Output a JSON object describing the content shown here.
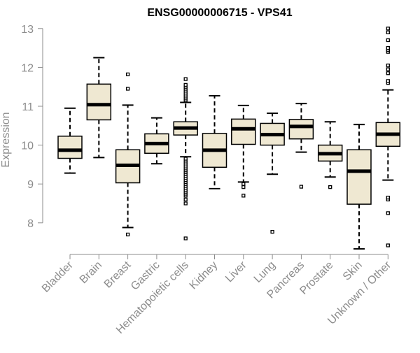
{
  "chart_data": {
    "type": "boxplot",
    "title": "ENSG00000006715 - VPS41",
    "ylabel": "Expression",
    "xlabel": "",
    "ylim": [
      7.3,
      13.0
    ],
    "yticks": [
      8,
      9,
      10,
      11,
      12,
      13
    ],
    "grid": false,
    "legend": "none",
    "colors": {
      "box_fill": "#efe8d2",
      "stroke": "#000000",
      "axis": "#8c8c8c"
    },
    "categories": [
      "Bladder",
      "Brain",
      "Breast",
      "Gastric",
      "Hematopoietic cells",
      "Kidney",
      "Liver",
      "Lung",
      "Pancreas",
      "Prostate",
      "Skin",
      "Unknown / Other"
    ],
    "boxes": [
      {
        "category": "Bladder",
        "whisker_low": 9.28,
        "q1": 9.66,
        "median": 9.87,
        "q3": 10.23,
        "whisker_high": 10.95,
        "outliers": []
      },
      {
        "category": "Brain",
        "whisker_low": 9.68,
        "q1": 10.65,
        "median": 11.04,
        "q3": 11.57,
        "whisker_high": 12.25,
        "outliers": []
      },
      {
        "category": "Breast",
        "whisker_low": 7.88,
        "q1": 9.03,
        "median": 9.48,
        "q3": 9.88,
        "whisker_high": 11.03,
        "outliers": [
          7.7,
          11.45,
          11.82
        ]
      },
      {
        "category": "Gastric",
        "whisker_low": 9.52,
        "q1": 9.79,
        "median": 10.04,
        "q3": 10.29,
        "whisker_high": 10.7,
        "outliers": []
      },
      {
        "category": "Hematopoietic cells",
        "whisker_low": 9.7,
        "q1": 10.26,
        "median": 10.44,
        "q3": 10.6,
        "whisker_high": 11.1,
        "outliers": [
          7.6,
          8.5,
          8.6,
          8.7,
          8.75,
          8.8,
          8.85,
          8.9,
          8.95,
          9.0,
          9.05,
          9.1,
          9.15,
          9.2,
          9.25,
          9.3,
          9.35,
          9.4,
          9.45,
          9.5,
          9.55,
          9.6,
          9.65,
          11.15,
          11.2,
          11.25,
          11.3,
          11.35,
          11.4,
          11.45,
          11.5,
          11.55,
          11.7
        ]
      },
      {
        "category": "Kidney",
        "whisker_low": 8.88,
        "q1": 9.43,
        "median": 9.87,
        "q3": 10.3,
        "whisker_high": 11.27,
        "outliers": []
      },
      {
        "category": "Liver",
        "whisker_low": 9.05,
        "q1": 10.02,
        "median": 10.42,
        "q3": 10.67,
        "whisker_high": 11.02,
        "outliers": [
          8.7,
          8.92,
          9.0
        ]
      },
      {
        "category": "Lung",
        "whisker_low": 9.25,
        "q1": 10.0,
        "median": 10.27,
        "q3": 10.56,
        "whisker_high": 10.82,
        "outliers": [
          7.77
        ]
      },
      {
        "category": "Pancreas",
        "whisker_low": 9.82,
        "q1": 10.16,
        "median": 10.48,
        "q3": 10.66,
        "whisker_high": 11.07,
        "outliers": [
          8.93
        ]
      },
      {
        "category": "Prostate",
        "whisker_low": 9.18,
        "q1": 9.59,
        "median": 9.78,
        "q3": 10.0,
        "whisker_high": 10.6,
        "outliers": [
          8.92
        ]
      },
      {
        "category": "Skin",
        "whisker_low": 7.33,
        "q1": 8.48,
        "median": 9.33,
        "q3": 9.88,
        "whisker_high": 10.53,
        "outliers": []
      },
      {
        "category": "Unknown / Other",
        "whisker_low": 9.1,
        "q1": 9.97,
        "median": 10.28,
        "q3": 10.58,
        "whisker_high": 11.42,
        "outliers": [
          7.42,
          8.25,
          8.6,
          8.65,
          11.6,
          11.65,
          11.85,
          11.95,
          12.05,
          12.4,
          12.45,
          12.5,
          12.7,
          12.9,
          13.0
        ]
      }
    ]
  }
}
